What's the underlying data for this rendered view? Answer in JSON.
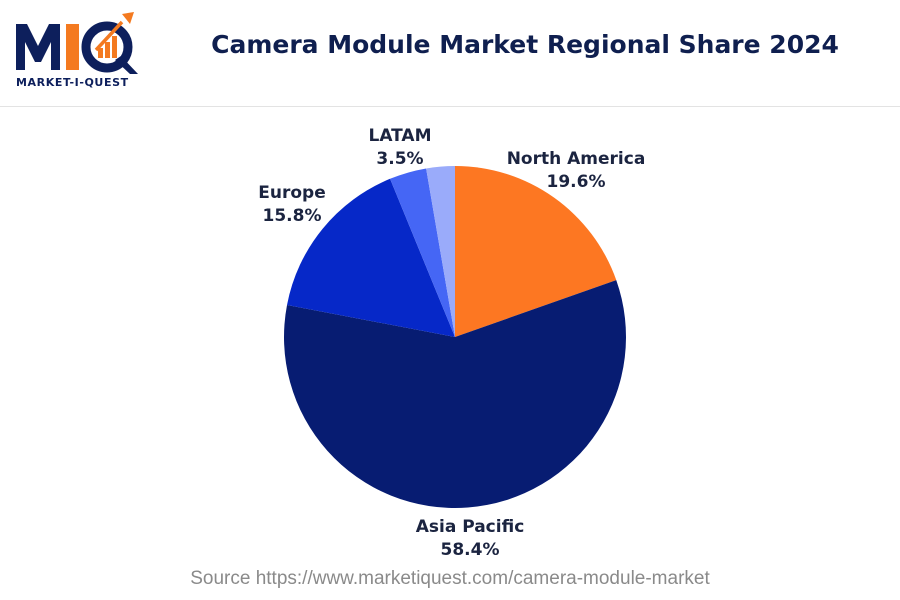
{
  "brand": {
    "logo_letters": "MIQ",
    "logo_name": "MARKET-I-QUEST",
    "colors": {
      "navy": "#0d1f5c",
      "orange": "#f47a20"
    }
  },
  "source_text": "Source https://www.marketiquest.com/camera-module-market",
  "chart_data": {
    "type": "pie",
    "title": "Camera Module Market Regional Share 2024",
    "categories": [
      "North America",
      "Asia Pacific",
      "Europe",
      "LATAM",
      ""
    ],
    "values": [
      19.6,
      58.4,
      15.8,
      3.5,
      2.7
    ],
    "labels": [
      "19.6%",
      "58.4%",
      "15.8%",
      "3.5%",
      ""
    ],
    "colors": [
      "#fd7722",
      "#071c72",
      "#0628c8",
      "#4566f5",
      "#9aabfa"
    ],
    "start_angle": "12 o'clock, clockwise",
    "legend": "none"
  }
}
